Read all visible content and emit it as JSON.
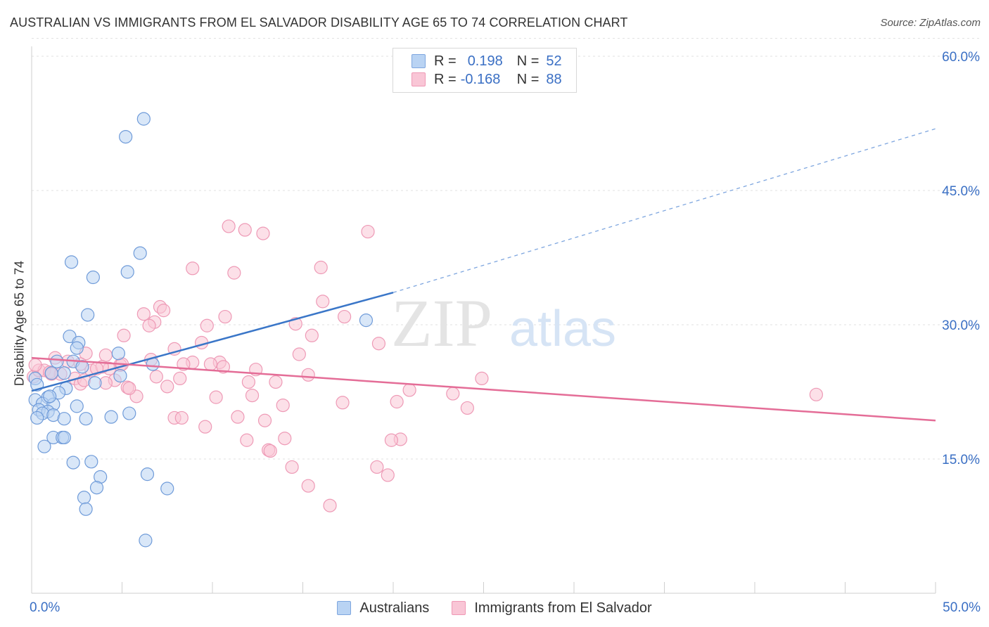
{
  "title": "AUSTRALIAN VS IMMIGRANTS FROM EL SALVADOR DISABILITY AGE 65 TO 74 CORRELATION CHART",
  "source": "Source: ZipAtlas.com",
  "watermark": {
    "zip": "ZIP",
    "atlas": "atlas"
  },
  "legend": {
    "rows": [
      {
        "r_label": "R =",
        "r_value": "0.198",
        "n_label": "N =",
        "n_value": "52"
      },
      {
        "r_label": "R =",
        "r_value": "-0.168",
        "n_label": "N =",
        "n_value": "88"
      }
    ]
  },
  "chart_data": {
    "type": "scatter",
    "title": "AUSTRALIAN VS IMMIGRANTS FROM EL SALVADOR DISABILITY AGE 65 TO 74 CORRELATION CHART",
    "xlabel": "",
    "ylabel": "Disability Age 65 to 74",
    "xlim": [
      0,
      50
    ],
    "ylim": [
      0,
      62
    ],
    "x_tick_labels": [
      "0.0%",
      "50.0%"
    ],
    "y_ticks": [
      15,
      30,
      45,
      60
    ],
    "y_tick_labels": [
      "15.0%",
      "30.0%",
      "45.0%",
      "60.0%"
    ],
    "grid": true,
    "legend_position": "top-center",
    "colors": {
      "blue": "#3a76c8",
      "pink": "#e46d97",
      "blue_fill": "#b9d3f3",
      "pink_fill": "#f9c6d6",
      "axis_label": "#3a6fc4"
    },
    "series": [
      {
        "name": "Australians",
        "color": "#3a76c8",
        "trend": {
          "x0": 0,
          "y0": 22.6,
          "x1": 20,
          "y1": 33.6,
          "dash_to_x": 50,
          "dash_to_y": 51.9
        },
        "points": [
          [
            6.2,
            53.0
          ],
          [
            5.2,
            51.0
          ],
          [
            6.0,
            38.0
          ],
          [
            2.2,
            37.0
          ],
          [
            5.3,
            35.9
          ],
          [
            3.4,
            35.3
          ],
          [
            3.1,
            31.1
          ],
          [
            18.5,
            30.5
          ],
          [
            2.1,
            28.7
          ],
          [
            2.6,
            28.0
          ],
          [
            2.5,
            27.4
          ],
          [
            4.8,
            26.8
          ],
          [
            2.3,
            25.9
          ],
          [
            1.4,
            25.9
          ],
          [
            2.8,
            25.3
          ],
          [
            6.7,
            25.6
          ],
          [
            1.8,
            24.6
          ],
          [
            1.1,
            24.6
          ],
          [
            4.9,
            24.3
          ],
          [
            0.2,
            24.0
          ],
          [
            3.5,
            23.5
          ],
          [
            0.3,
            23.3
          ],
          [
            1.9,
            22.9
          ],
          [
            1.5,
            22.4
          ],
          [
            0.9,
            21.9
          ],
          [
            0.2,
            21.6
          ],
          [
            0.6,
            21.2
          ],
          [
            1.2,
            21.1
          ],
          [
            2.5,
            20.9
          ],
          [
            0.4,
            20.5
          ],
          [
            0.9,
            20.3
          ],
          [
            0.6,
            20.1
          ],
          [
            5.4,
            20.1
          ],
          [
            4.4,
            19.7
          ],
          [
            1.2,
            19.9
          ],
          [
            0.3,
            19.6
          ],
          [
            1.8,
            19.5
          ],
          [
            3.0,
            19.5
          ],
          [
            1.2,
            17.4
          ],
          [
            1.7,
            17.4
          ],
          [
            1.8,
            17.4
          ],
          [
            0.7,
            16.4
          ],
          [
            2.3,
            14.6
          ],
          [
            3.3,
            14.7
          ],
          [
            6.4,
            13.3
          ],
          [
            3.8,
            13.0
          ],
          [
            3.6,
            11.8
          ],
          [
            7.5,
            11.7
          ],
          [
            2.9,
            10.7
          ],
          [
            3.0,
            9.4
          ],
          [
            6.3,
            5.9
          ],
          [
            1.0,
            22.0
          ]
        ]
      },
      {
        "name": "Immigrants from El Salvador",
        "color": "#e46d97",
        "trend": {
          "x0": 0,
          "y0": 26.3,
          "x1": 50,
          "y1": 19.3
        },
        "points": [
          [
            10.9,
            41.0
          ],
          [
            11.8,
            40.6
          ],
          [
            12.8,
            40.2
          ],
          [
            18.6,
            40.4
          ],
          [
            8.9,
            36.3
          ],
          [
            16.0,
            36.4
          ],
          [
            11.2,
            35.8
          ],
          [
            7.1,
            32.0
          ],
          [
            7.3,
            31.6
          ],
          [
            6.2,
            31.2
          ],
          [
            16.1,
            32.6
          ],
          [
            10.7,
            30.9
          ],
          [
            17.3,
            30.9
          ],
          [
            6.8,
            30.3
          ],
          [
            6.5,
            29.9
          ],
          [
            9.7,
            29.9
          ],
          [
            14.6,
            30.1
          ],
          [
            5.1,
            28.8
          ],
          [
            15.5,
            28.8
          ],
          [
            9.4,
            28.0
          ],
          [
            19.2,
            27.9
          ],
          [
            7.9,
            27.3
          ],
          [
            14.8,
            26.7
          ],
          [
            3.0,
            26.8
          ],
          [
            4.1,
            26.6
          ],
          [
            6.6,
            26.1
          ],
          [
            1.3,
            26.3
          ],
          [
            8.9,
            25.8
          ],
          [
            10.4,
            25.8
          ],
          [
            9.9,
            25.6
          ],
          [
            8.4,
            25.6
          ],
          [
            10.6,
            25.3
          ],
          [
            2.7,
            25.6
          ],
          [
            4.9,
            25.5
          ],
          [
            0.1,
            24.2
          ],
          [
            0.4,
            24.9
          ],
          [
            0.7,
            24.9
          ],
          [
            1.0,
            24.7
          ],
          [
            1.6,
            24.5
          ],
          [
            4.3,
            25.1
          ],
          [
            3.3,
            24.9
          ],
          [
            12.4,
            25.0
          ],
          [
            12.0,
            23.6
          ],
          [
            6.9,
            24.2
          ],
          [
            2.4,
            24.0
          ],
          [
            8.2,
            24.0
          ],
          [
            15.3,
            24.4
          ],
          [
            4.6,
            23.8
          ],
          [
            24.9,
            24.0
          ],
          [
            4.1,
            23.5
          ],
          [
            13.5,
            23.6
          ],
          [
            7.5,
            23.1
          ],
          [
            2.7,
            23.4
          ],
          [
            5.3,
            23.0
          ],
          [
            20.9,
            22.7
          ],
          [
            23.3,
            22.3
          ],
          [
            12.2,
            22.1
          ],
          [
            10.2,
            21.9
          ],
          [
            5.8,
            22.0
          ],
          [
            43.4,
            22.2
          ],
          [
            20.2,
            21.4
          ],
          [
            17.2,
            21.3
          ],
          [
            13.9,
            21.0
          ],
          [
            24.1,
            20.7
          ],
          [
            7.9,
            19.6
          ],
          [
            8.3,
            19.6
          ],
          [
            11.4,
            19.7
          ],
          [
            12.9,
            19.3
          ],
          [
            9.6,
            18.6
          ],
          [
            14.0,
            17.3
          ],
          [
            20.4,
            17.2
          ],
          [
            19.9,
            17.1
          ],
          [
            11.9,
            17.1
          ],
          [
            13.1,
            16.0
          ],
          [
            13.2,
            15.9
          ],
          [
            14.4,
            14.1
          ],
          [
            19.1,
            14.1
          ],
          [
            19.7,
            13.2
          ],
          [
            15.3,
            12.0
          ],
          [
            16.5,
            9.8
          ],
          [
            0.2,
            25.5
          ],
          [
            1.1,
            24.5
          ],
          [
            2.0,
            25.9
          ],
          [
            2.9,
            23.8
          ],
          [
            3.9,
            25.3
          ],
          [
            5.0,
            25.6
          ],
          [
            5.4,
            22.9
          ],
          [
            3.6,
            25.1
          ]
        ]
      }
    ]
  },
  "bottom_legend": [
    {
      "label": "Australians"
    },
    {
      "label": "Immigrants from El Salvador"
    }
  ]
}
